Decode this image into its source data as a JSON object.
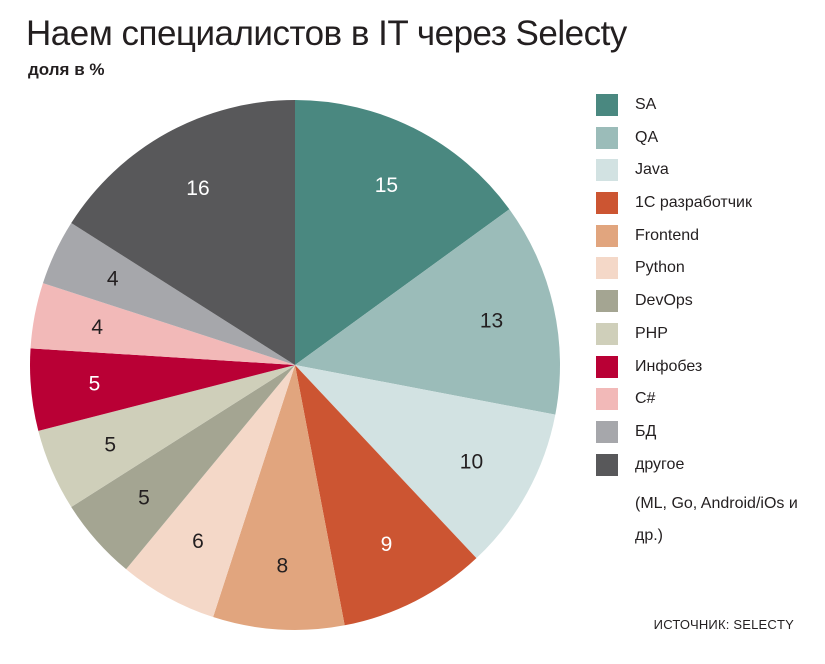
{
  "header": {
    "title": "Наем специалистов в IT через Selecty",
    "subtitle": "доля в %"
  },
  "legend": {
    "note": "(ML, Go, Android/iOs и др.)"
  },
  "source": "ИСТОЧНИК: SELECTY",
  "chart_data": {
    "type": "pie",
    "title": "Наем специалистов в IT через Selecty",
    "subtitle": "доля в %",
    "legend_position": "right",
    "slices": [
      {
        "label": "SA",
        "value": 15,
        "color": "#4a8880",
        "label_color": "#ffffff"
      },
      {
        "label": "QA",
        "value": 13,
        "color": "#9bbcb9",
        "label_color": "#231f20"
      },
      {
        "label": "Java",
        "value": 10,
        "color": "#d2e2e2",
        "label_color": "#231f20"
      },
      {
        "label": "1С разработчик",
        "value": 9,
        "color": "#cc5532",
        "label_color": "#ffffff"
      },
      {
        "label": "Frontend",
        "value": 8,
        "color": "#e1a57e",
        "label_color": "#231f20"
      },
      {
        "label": "Python",
        "value": 6,
        "color": "#f4d8c8",
        "label_color": "#231f20"
      },
      {
        "label": "DevOps",
        "value": 5,
        "color": "#a4a592",
        "label_color": "#231f20"
      },
      {
        "label": "PHP",
        "value": 5,
        "color": "#cfcfba",
        "label_color": "#231f20"
      },
      {
        "label": "Инфобез",
        "value": 5,
        "color": "#b90035",
        "label_color": "#ffffff"
      },
      {
        "label": "C#",
        "value": 4,
        "color": "#f2b9b8",
        "label_color": "#231f20"
      },
      {
        "label": "БД",
        "value": 4,
        "color": "#a6a7ab",
        "label_color": "#231f20"
      },
      {
        "label": "другое",
        "value": 16,
        "color": "#58585a",
        "label_color": "#ffffff"
      }
    ]
  }
}
